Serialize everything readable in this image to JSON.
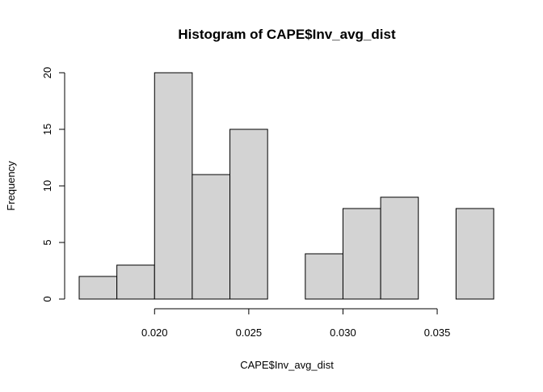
{
  "chart_data": {
    "type": "bar",
    "title": "Histogram of CAPE$Inv_avg_dist",
    "xlabel": "CAPE$Inv_avg_dist",
    "ylabel": "Frequency",
    "bin_edges": [
      0.016,
      0.018,
      0.02,
      0.022,
      0.024,
      0.026,
      0.028,
      0.03,
      0.032,
      0.034,
      0.036,
      0.038
    ],
    "values": [
      2,
      3,
      20,
      11,
      15,
      0,
      4,
      8,
      9,
      0,
      8
    ],
    "x_ticks": [
      0.02,
      0.025,
      0.03,
      0.035
    ],
    "x_tick_labels": [
      "0.020",
      "0.025",
      "0.030",
      "0.035"
    ],
    "y_ticks": [
      0,
      5,
      10,
      15,
      20
    ],
    "y_tick_labels": [
      "0",
      "5",
      "10",
      "15",
      "20"
    ],
    "xlim": [
      0.016,
      0.038
    ],
    "ylim": [
      0,
      20
    ],
    "grid": false,
    "bar_color": "#d3d3d3",
    "bar_edge_color": "#000000"
  }
}
